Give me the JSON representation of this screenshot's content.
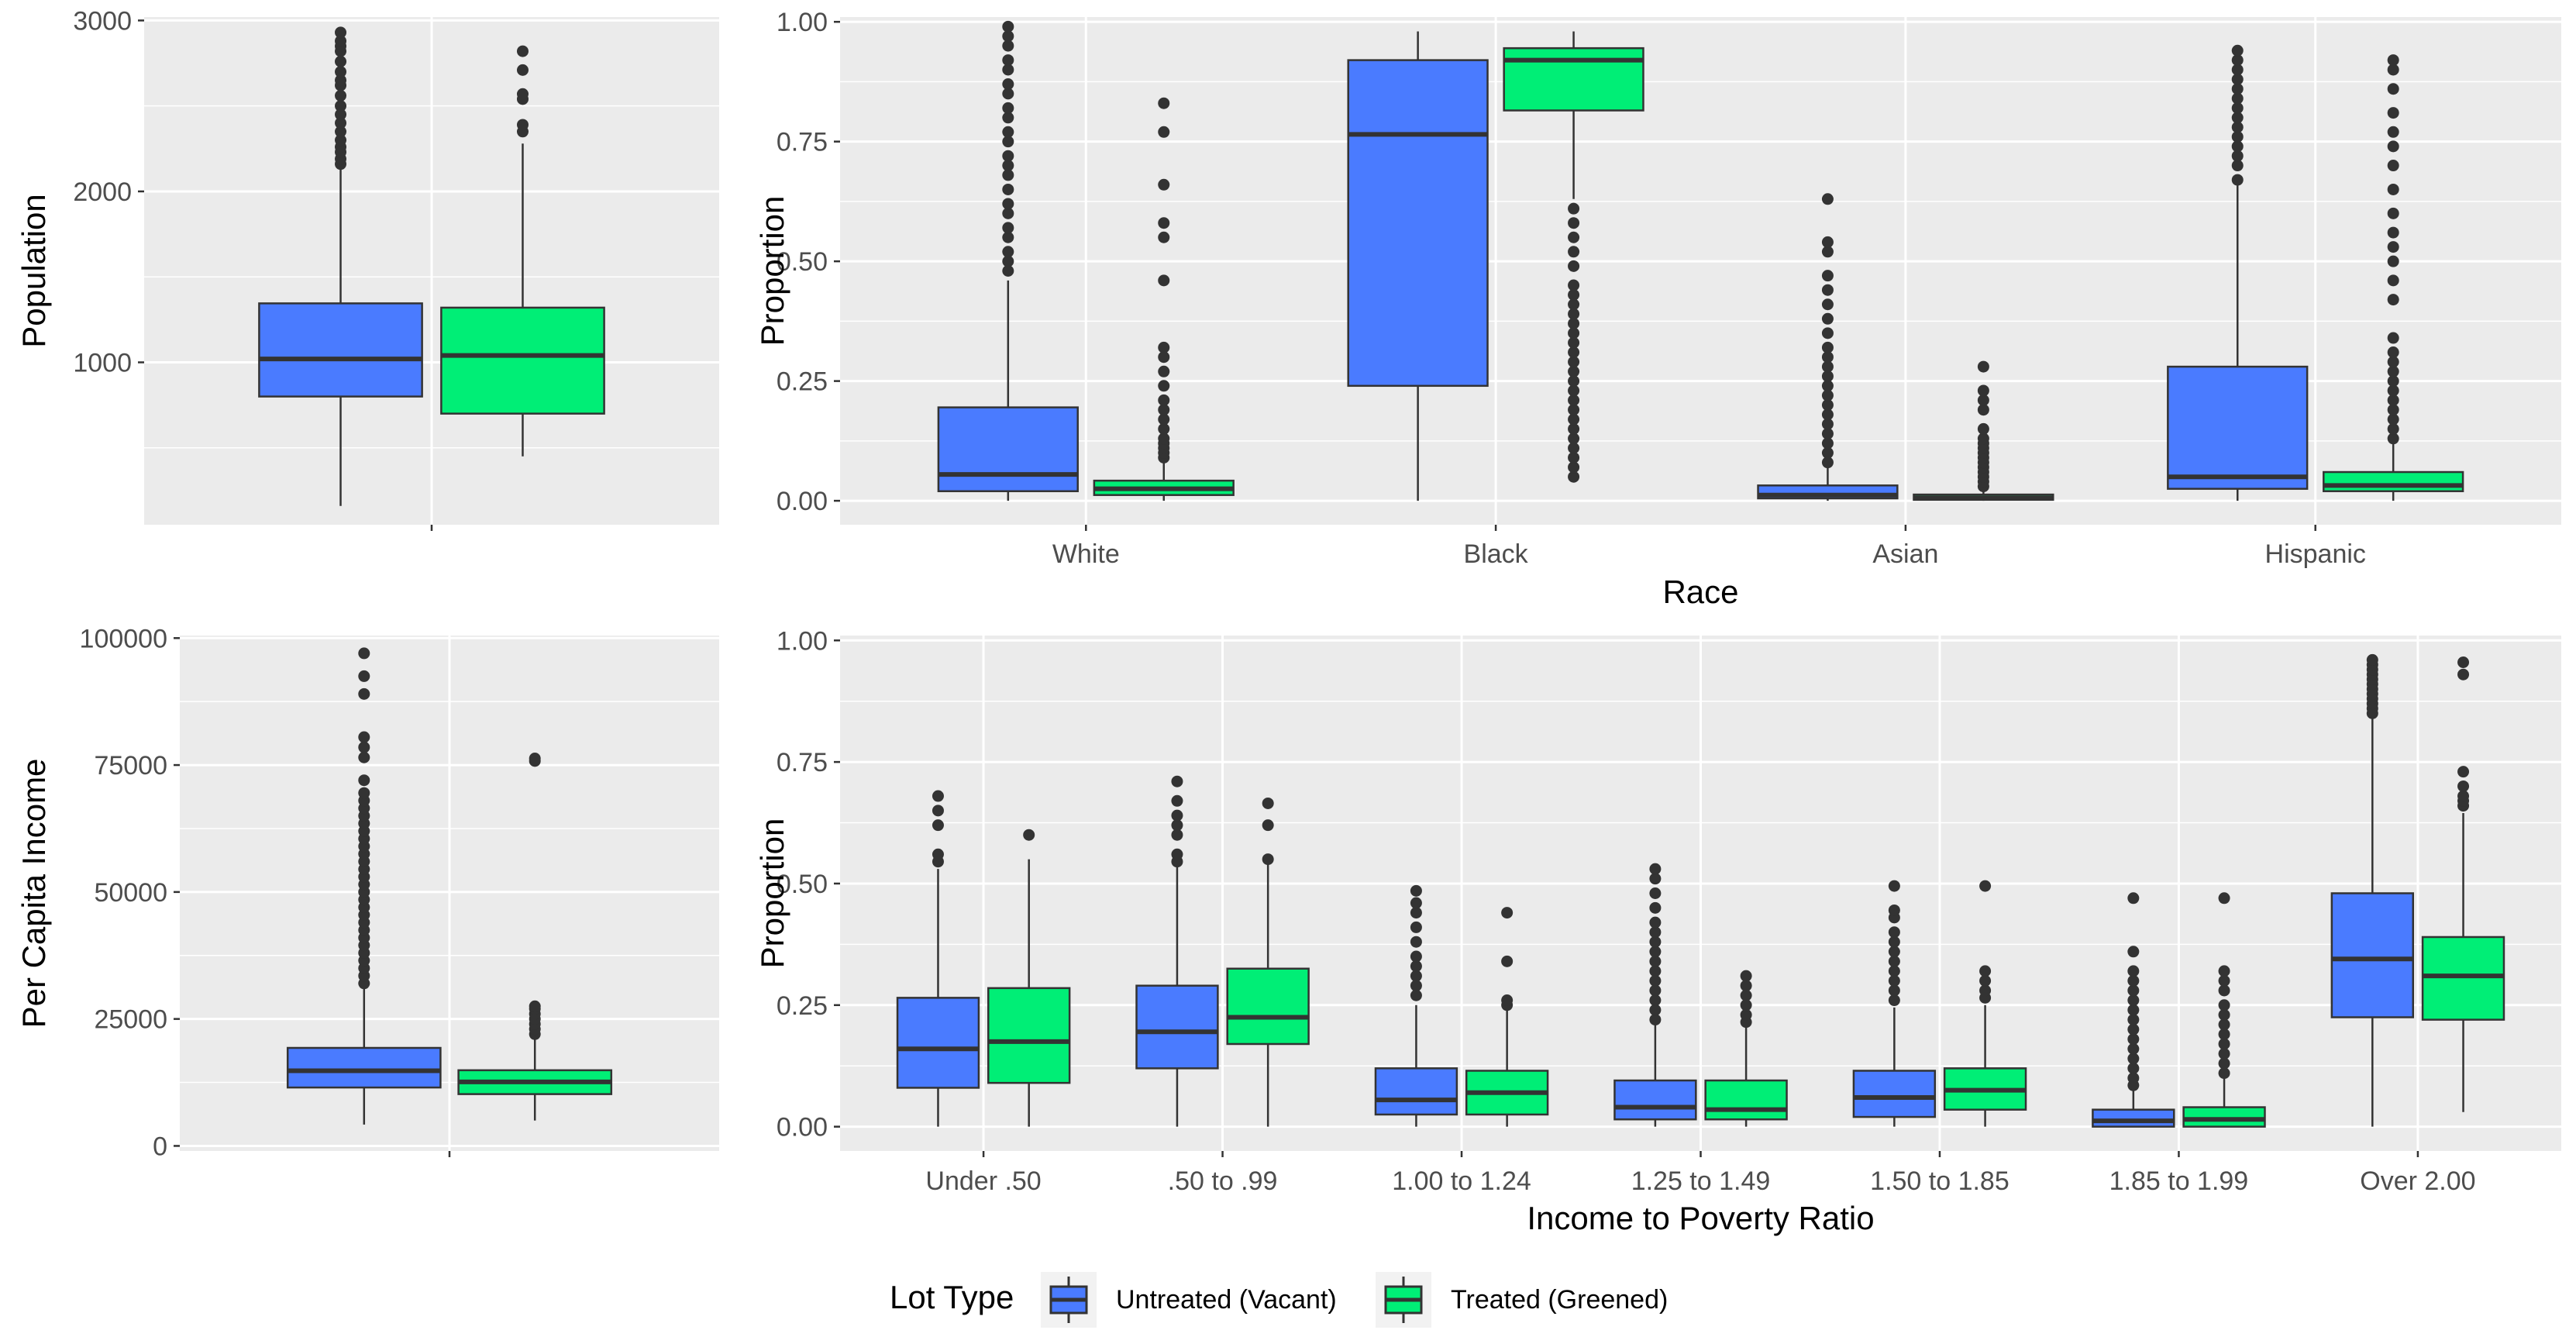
{
  "colors": {
    "untreated": "#4A7BFF",
    "treated": "#00EE76",
    "panel_bg": "#EBEBEB",
    "grid_major": "#FFFFFF",
    "box_line": "#333333",
    "point": "#333333"
  },
  "legend": {
    "title": "Lot Type",
    "position": "bottom",
    "items": [
      {
        "label": "Untreated (Vacant)",
        "color_key": "untreated"
      },
      {
        "label": "Treated (Greened)",
        "color_key": "treated"
      }
    ]
  },
  "chart_data": [
    {
      "id": "population",
      "type": "boxplot",
      "xlabel": "",
      "ylabel": "Population",
      "ylim": [
        50,
        3020
      ],
      "yticks": [
        1000,
        2000,
        3000
      ],
      "ytick_labels": [
        "1000",
        "2000",
        "3000"
      ],
      "x_grid": [
        0,
        1
      ],
      "categories": [
        ""
      ],
      "boxes": [
        {
          "category": 0,
          "group": "untreated",
          "q1": 800,
          "median": 1020,
          "q3": 1345,
          "whisker_low": 160,
          "whisker_high": 2130,
          "outliers": [
            2160,
            2190,
            2230,
            2260,
            2300,
            2350,
            2400,
            2450,
            2500,
            2560,
            2620,
            2650,
            2700,
            2760,
            2820,
            2850,
            2880,
            2930
          ]
        },
        {
          "category": 0,
          "group": "treated",
          "q1": 700,
          "median": 1040,
          "q3": 1320,
          "whisker_low": 450,
          "whisker_high": 2280,
          "outliers": [
            2350,
            2390,
            2540,
            2570,
            2710,
            2820
          ]
        }
      ]
    },
    {
      "id": "race",
      "type": "boxplot",
      "xlabel": "Race",
      "ylabel": "Proportion",
      "ylim": [
        -0.05,
        1.01
      ],
      "yticks": [
        0,
        0.25,
        0.5,
        0.75,
        1.0
      ],
      "ytick_labels": [
        "0.00",
        "0.25",
        "0.50",
        "0.75",
        "1.00"
      ],
      "categories": [
        "White",
        "Black",
        "Asian",
        "Hispanic"
      ],
      "boxes": [
        {
          "category": 0,
          "group": "untreated",
          "q1": 0.02,
          "median": 0.055,
          "q3": 0.195,
          "whisker_low": 0.0,
          "whisker_high": 0.46,
          "outliers": [
            0.48,
            0.5,
            0.52,
            0.55,
            0.57,
            0.6,
            0.62,
            0.65,
            0.68,
            0.7,
            0.72,
            0.75,
            0.77,
            0.8,
            0.82,
            0.85,
            0.87,
            0.9,
            0.92,
            0.95,
            0.97,
            0.99
          ]
        },
        {
          "category": 0,
          "group": "treated",
          "q1": 0.012,
          "median": 0.025,
          "q3": 0.042,
          "whisker_low": 0.0,
          "whisker_high": 0.085,
          "outliers": [
            0.09,
            0.1,
            0.11,
            0.12,
            0.13,
            0.15,
            0.17,
            0.19,
            0.21,
            0.24,
            0.27,
            0.3,
            0.32,
            0.46,
            0.55,
            0.58,
            0.66,
            0.77,
            0.83
          ]
        },
        {
          "category": 1,
          "group": "untreated",
          "q1": 0.24,
          "median": 0.765,
          "q3": 0.92,
          "whisker_low": 0.0,
          "whisker_high": 0.98,
          "outliers": []
        },
        {
          "category": 1,
          "group": "treated",
          "q1": 0.815,
          "median": 0.92,
          "q3": 0.945,
          "whisker_low": 0.63,
          "whisker_high": 0.98,
          "outliers": [
            0.05,
            0.07,
            0.09,
            0.11,
            0.13,
            0.15,
            0.17,
            0.19,
            0.21,
            0.23,
            0.25,
            0.27,
            0.29,
            0.31,
            0.33,
            0.35,
            0.37,
            0.39,
            0.41,
            0.43,
            0.45,
            0.49,
            0.52,
            0.55,
            0.58,
            0.61
          ]
        },
        {
          "category": 2,
          "group": "untreated",
          "q1": 0.005,
          "median": 0.012,
          "q3": 0.032,
          "whisker_low": 0.0,
          "whisker_high": 0.07,
          "outliers": [
            0.08,
            0.1,
            0.12,
            0.14,
            0.16,
            0.18,
            0.2,
            0.22,
            0.24,
            0.26,
            0.28,
            0.3,
            0.32,
            0.35,
            0.38,
            0.41,
            0.44,
            0.47,
            0.52,
            0.54,
            0.63
          ]
        },
        {
          "category": 2,
          "group": "treated",
          "q1": 0.002,
          "median": 0.006,
          "q3": 0.013,
          "whisker_low": 0.0,
          "whisker_high": 0.025,
          "outliers": [
            0.03,
            0.04,
            0.05,
            0.06,
            0.07,
            0.08,
            0.09,
            0.1,
            0.11,
            0.12,
            0.13,
            0.15,
            0.19,
            0.21,
            0.23,
            0.28
          ]
        },
        {
          "category": 3,
          "group": "untreated",
          "q1": 0.025,
          "median": 0.05,
          "q3": 0.28,
          "whisker_low": 0.0,
          "whisker_high": 0.66,
          "outliers": [
            0.67,
            0.7,
            0.72,
            0.74,
            0.76,
            0.78,
            0.8,
            0.82,
            0.84,
            0.86,
            0.88,
            0.9,
            0.92,
            0.94
          ]
        },
        {
          "category": 3,
          "group": "treated",
          "q1": 0.02,
          "median": 0.032,
          "q3": 0.06,
          "whisker_low": 0.0,
          "whisker_high": 0.12,
          "outliers": [
            0.13,
            0.15,
            0.17,
            0.19,
            0.21,
            0.23,
            0.25,
            0.27,
            0.29,
            0.31,
            0.34,
            0.42,
            0.46,
            0.5,
            0.53,
            0.56,
            0.6,
            0.65,
            0.7,
            0.74,
            0.77,
            0.81,
            0.86,
            0.9,
            0.92
          ]
        }
      ]
    },
    {
      "id": "per-capita-income",
      "type": "boxplot",
      "xlabel": "",
      "ylabel": "Per Capita Income",
      "ylim": [
        -1000,
        100500
      ],
      "yticks": [
        0,
        25000,
        50000,
        75000,
        100000
      ],
      "ytick_labels": [
        "0",
        "25000",
        "50000",
        "75000",
        "100000"
      ],
      "x_grid": [
        0,
        1
      ],
      "categories": [
        ""
      ],
      "boxes": [
        {
          "category": 0,
          "group": "untreated",
          "q1": 11500,
          "median": 14800,
          "q3": 19300,
          "whisker_low": 4200,
          "whisker_high": 31000,
          "outliers": [
            32000,
            33500,
            35000,
            36500,
            38000,
            39500,
            41000,
            42500,
            44000,
            45500,
            47000,
            48500,
            50000,
            51500,
            53000,
            54500,
            56000,
            57500,
            59000,
            60500,
            62000,
            63500,
            65000,
            66500,
            68000,
            69500,
            72000,
            76500,
            78500,
            80500,
            89000,
            92500,
            97000
          ]
        },
        {
          "category": 0,
          "group": "treated",
          "q1": 10200,
          "median": 12600,
          "q3": 14900,
          "whisker_low": 5000,
          "whisker_high": 21500,
          "outliers": [
            22000,
            23000,
            24000,
            25000,
            26000,
            27000,
            27500,
            75800,
            76300
          ]
        }
      ]
    },
    {
      "id": "income-to-poverty",
      "type": "boxplot",
      "xlabel": "Income to Poverty Ratio",
      "ylabel": "Proportion",
      "ylim": [
        -0.05,
        1.01
      ],
      "yticks": [
        0,
        0.25,
        0.5,
        0.75,
        1.0
      ],
      "ytick_labels": [
        "0.00",
        "0.25",
        "0.50",
        "0.75",
        "1.00"
      ],
      "categories": [
        "Under .50",
        ".50 to .99",
        "1.00 to 1.24",
        "1.25 to 1.49",
        "1.50 to 1.85",
        "1.85 to 1.99",
        "Over 2.00"
      ],
      "boxes": [
        {
          "category": 0,
          "group": "untreated",
          "q1": 0.08,
          "median": 0.16,
          "q3": 0.265,
          "whisker_low": 0.0,
          "whisker_high": 0.53,
          "outliers": [
            0.545,
            0.56,
            0.62,
            0.65,
            0.68
          ]
        },
        {
          "category": 0,
          "group": "treated",
          "q1": 0.09,
          "median": 0.175,
          "q3": 0.285,
          "whisker_low": 0.0,
          "whisker_high": 0.55,
          "outliers": [
            0.6
          ]
        },
        {
          "category": 1,
          "group": "untreated",
          "q1": 0.12,
          "median": 0.195,
          "q3": 0.29,
          "whisker_low": 0.0,
          "whisker_high": 0.535,
          "outliers": [
            0.545,
            0.56,
            0.6,
            0.62,
            0.64,
            0.67,
            0.71
          ]
        },
        {
          "category": 1,
          "group": "treated",
          "q1": 0.17,
          "median": 0.225,
          "q3": 0.325,
          "whisker_low": 0.0,
          "whisker_high": 0.54,
          "outliers": [
            0.55,
            0.62,
            0.665
          ]
        },
        {
          "category": 2,
          "group": "untreated",
          "q1": 0.025,
          "median": 0.055,
          "q3": 0.12,
          "whisker_low": 0.0,
          "whisker_high": 0.25,
          "outliers": [
            0.27,
            0.29,
            0.31,
            0.33,
            0.35,
            0.38,
            0.41,
            0.44,
            0.46,
            0.485
          ]
        },
        {
          "category": 2,
          "group": "treated",
          "q1": 0.025,
          "median": 0.07,
          "q3": 0.115,
          "whisker_low": 0.0,
          "whisker_high": 0.24,
          "outliers": [
            0.25,
            0.26,
            0.34,
            0.44
          ]
        },
        {
          "category": 3,
          "group": "untreated",
          "q1": 0.015,
          "median": 0.04,
          "q3": 0.095,
          "whisker_low": 0.0,
          "whisker_high": 0.21,
          "outliers": [
            0.22,
            0.24,
            0.26,
            0.28,
            0.3,
            0.32,
            0.34,
            0.36,
            0.38,
            0.4,
            0.42,
            0.45,
            0.48,
            0.51,
            0.53
          ]
        },
        {
          "category": 3,
          "group": "treated",
          "q1": 0.015,
          "median": 0.035,
          "q3": 0.095,
          "whisker_low": 0.0,
          "whisker_high": 0.205,
          "outliers": [
            0.215,
            0.23,
            0.25,
            0.27,
            0.29,
            0.31
          ]
        },
        {
          "category": 4,
          "group": "untreated",
          "q1": 0.02,
          "median": 0.06,
          "q3": 0.115,
          "whisker_low": 0.0,
          "whisker_high": 0.245,
          "outliers": [
            0.26,
            0.28,
            0.3,
            0.32,
            0.34,
            0.36,
            0.38,
            0.4,
            0.43,
            0.445,
            0.495
          ]
        },
        {
          "category": 4,
          "group": "treated",
          "q1": 0.035,
          "median": 0.075,
          "q3": 0.12,
          "whisker_low": 0.0,
          "whisker_high": 0.25,
          "outliers": [
            0.265,
            0.28,
            0.3,
            0.32,
            0.495
          ]
        },
        {
          "category": 5,
          "group": "untreated",
          "q1": 0.0,
          "median": 0.012,
          "q3": 0.035,
          "whisker_low": 0.0,
          "whisker_high": 0.075,
          "outliers": [
            0.085,
            0.1,
            0.12,
            0.14,
            0.16,
            0.18,
            0.2,
            0.22,
            0.24,
            0.26,
            0.28,
            0.3,
            0.32,
            0.36,
            0.47
          ]
        },
        {
          "category": 5,
          "group": "treated",
          "q1": 0.0,
          "median": 0.015,
          "q3": 0.04,
          "whisker_low": 0.0,
          "whisker_high": 0.1,
          "outliers": [
            0.11,
            0.13,
            0.15,
            0.17,
            0.19,
            0.21,
            0.23,
            0.25,
            0.28,
            0.3,
            0.32,
            0.47
          ]
        },
        {
          "category": 6,
          "group": "untreated",
          "q1": 0.225,
          "median": 0.345,
          "q3": 0.48,
          "whisker_low": 0.0,
          "whisker_high": 0.84,
          "outliers": [
            0.85,
            0.86,
            0.87,
            0.88,
            0.89,
            0.9,
            0.91,
            0.92,
            0.93,
            0.94,
            0.95,
            0.96
          ]
        },
        {
          "category": 6,
          "group": "treated",
          "q1": 0.22,
          "median": 0.31,
          "q3": 0.39,
          "whisker_low": 0.03,
          "whisker_high": 0.645,
          "outliers": [
            0.66,
            0.67,
            0.68,
            0.7,
            0.73,
            0.93,
            0.955
          ]
        }
      ]
    }
  ]
}
